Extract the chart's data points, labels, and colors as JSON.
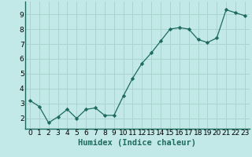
{
  "x": [
    0,
    1,
    2,
    3,
    4,
    5,
    6,
    7,
    8,
    9,
    10,
    11,
    12,
    13,
    14,
    15,
    16,
    17,
    18,
    19,
    20,
    21,
    22,
    23
  ],
  "y": [
    3.2,
    2.8,
    1.7,
    2.1,
    2.6,
    2.0,
    2.6,
    2.7,
    2.2,
    2.2,
    3.5,
    4.7,
    5.7,
    6.4,
    7.2,
    8.0,
    8.1,
    8.0,
    7.3,
    7.1,
    7.4,
    9.3,
    9.1,
    8.9
  ],
  "xlabel": "Humidex (Indice chaleur)",
  "bg_color": "#c2e8e8",
  "line_color": "#1e6b5e",
  "marker_color": "#1e6b5e",
  "grid_color": "#aad4d0",
  "axis_bg": "#c2e8e8",
  "xlim": [
    -0.5,
    23.5
  ],
  "ylim": [
    1.3,
    9.85
  ],
  "yticks": [
    2,
    3,
    4,
    5,
    6,
    7,
    8,
    9
  ],
  "xticks": [
    0,
    1,
    2,
    3,
    4,
    5,
    6,
    7,
    8,
    9,
    10,
    11,
    12,
    13,
    14,
    15,
    16,
    17,
    18,
    19,
    20,
    21,
    22,
    23
  ],
  "xlabel_fontsize": 7.5,
  "tick_fontsize": 6.5,
  "spine_color": "#1e6b5e"
}
